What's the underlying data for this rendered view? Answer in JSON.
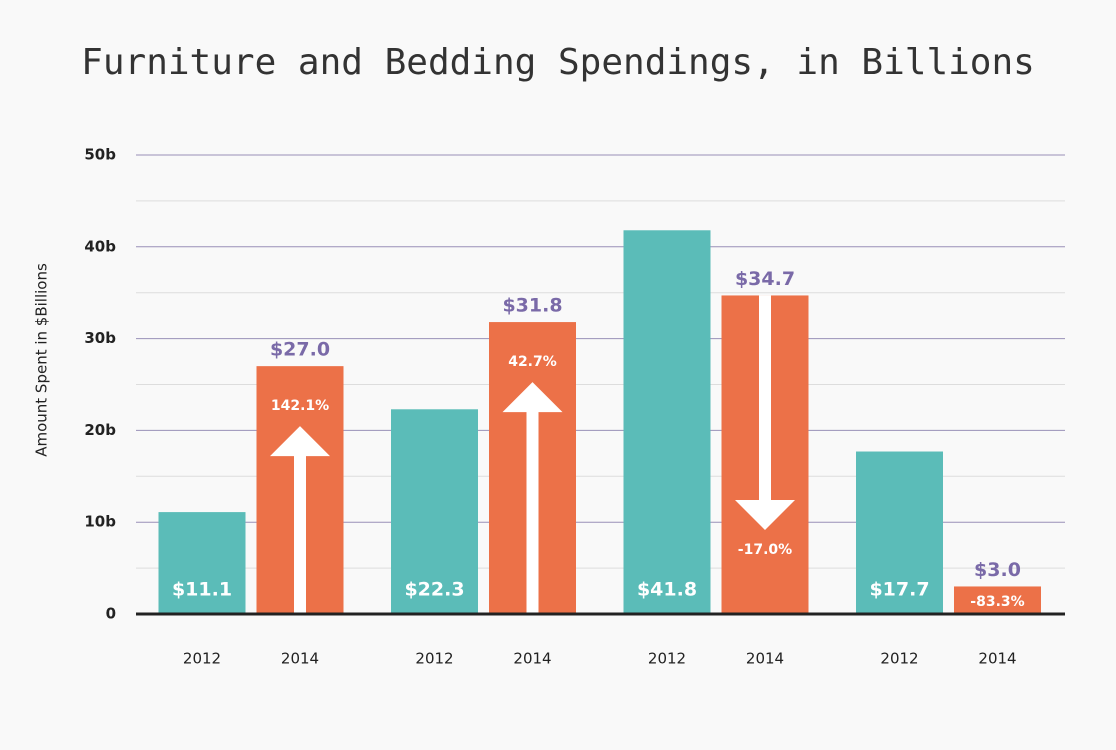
{
  "chart_data": {
    "type": "bar",
    "title": "Furniture and Bedding Spendings, in Billions",
    "y_label": "Amount Spent in $Billions",
    "categories": [
      "2012",
      "2014",
      "2012",
      "2014",
      "2012",
      "2014",
      "2012",
      "2014"
    ],
    "values": [
      11.1,
      27.0,
      22.3,
      31.8,
      41.8,
      34.7,
      17.7,
      3.0
    ],
    "value_labels": [
      "$11.1",
      "$27.0",
      "$22.3",
      "$31.8",
      "$41.8",
      "$34.7",
      "$17.7",
      "$3.0"
    ],
    "colors": [
      "#5bbcb8",
      "#ec7148",
      "#5bbcb8",
      "#ec7148",
      "#5bbcb8",
      "#ec7148",
      "#5bbcb8",
      "#ec7148"
    ],
    "changes": [
      {
        "value": 142.1,
        "label": "142.1%"
      },
      {
        "value": 42.7,
        "label": "42.7%"
      },
      {
        "value": -17.0,
        "label": "-17.0%"
      },
      {
        "value": -83.3,
        "label": "-83.3%"
      }
    ],
    "ylim": [
      0,
      50
    ],
    "yticks": [
      0,
      {
        "value": 10,
        "label": "10b"
      },
      {
        "value": 20,
        "label": "20b"
      },
      {
        "value": 30,
        "label": "30b"
      },
      {
        "value": 40,
        "label": "40b"
      },
      {
        "value": 50,
        "label": "50b"
      }
    ],
    "grid": true
  }
}
